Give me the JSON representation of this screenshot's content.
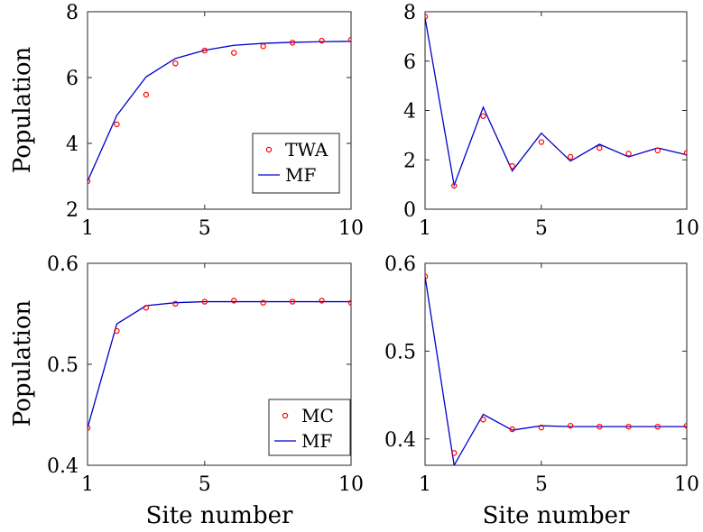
{
  "chart_data": [
    {
      "type": "line",
      "ylabel": "Population",
      "xlabel": "",
      "xlim": [
        1,
        10
      ],
      "ylim": [
        2,
        8
      ],
      "xticks": [
        1,
        5,
        10
      ],
      "yticks": [
        2,
        4,
        6,
        8
      ],
      "x": [
        1,
        2,
        3,
        4,
        5,
        6,
        7,
        8,
        9,
        10
      ],
      "series": [
        {
          "name": "TWA",
          "style": "markers",
          "color": "#ff0000",
          "values": [
            2.85,
            4.58,
            5.48,
            6.43,
            6.82,
            6.75,
            6.95,
            7.06,
            7.12,
            7.15
          ]
        },
        {
          "name": "MF",
          "style": "line",
          "color": "#0000cc",
          "values": [
            2.85,
            4.85,
            6.02,
            6.58,
            6.83,
            6.98,
            7.04,
            7.07,
            7.09,
            7.1
          ]
        }
      ],
      "legend": {
        "position": "bottom-right",
        "entries": [
          "TWA",
          "MF"
        ]
      }
    },
    {
      "type": "line",
      "ylabel": "",
      "xlabel": "",
      "xlim": [
        1,
        10
      ],
      "ylim": [
        0,
        8
      ],
      "xticks": [
        1,
        5,
        10
      ],
      "yticks": [
        0,
        2,
        4,
        6,
        8
      ],
      "x": [
        1,
        2,
        3,
        4,
        5,
        6,
        7,
        8,
        9,
        10
      ],
      "series": [
        {
          "name": "",
          "style": "markers",
          "color": "#ff0000",
          "values": [
            7.8,
            0.95,
            3.77,
            1.75,
            2.72,
            2.12,
            2.48,
            2.25,
            2.38,
            2.28
          ]
        },
        {
          "name": "",
          "style": "line",
          "color": "#0000cc",
          "values": [
            7.75,
            0.97,
            4.13,
            1.55,
            3.08,
            1.95,
            2.63,
            2.12,
            2.48,
            2.2
          ]
        }
      ]
    },
    {
      "type": "line",
      "ylabel": "Population",
      "xlabel": "Site number",
      "xlim": [
        1,
        10
      ],
      "ylim": [
        0.4,
        0.6
      ],
      "xticks": [
        1,
        5,
        10
      ],
      "yticks": [
        0.4,
        0.5,
        0.6
      ],
      "x": [
        1,
        2,
        3,
        4,
        5,
        6,
        7,
        8,
        9,
        10
      ],
      "series": [
        {
          "name": "MC",
          "style": "markers",
          "color": "#ff0000",
          "values": [
            0.437,
            0.533,
            0.556,
            0.56,
            0.562,
            0.563,
            0.561,
            0.562,
            0.563,
            0.561
          ]
        },
        {
          "name": "MF",
          "style": "line",
          "color": "#0000cc",
          "values": [
            0.437,
            0.54,
            0.558,
            0.561,
            0.562,
            0.562,
            0.562,
            0.562,
            0.562,
            0.562
          ]
        }
      ],
      "legend": {
        "position": "bottom-right",
        "entries": [
          "MC",
          "MF"
        ]
      }
    },
    {
      "type": "line",
      "ylabel": "",
      "xlabel": "Site number",
      "xlim": [
        1,
        10
      ],
      "ylim": [
        0.37,
        0.6
      ],
      "xticks": [
        1,
        5,
        10
      ],
      "yticks": [
        0.4,
        0.5,
        0.6
      ],
      "x": [
        1,
        2,
        3,
        4,
        5,
        6,
        7,
        8,
        9,
        10
      ],
      "series": [
        {
          "name": "",
          "style": "markers",
          "color": "#ff0000",
          "values": [
            0.585,
            0.384,
            0.422,
            0.411,
            0.413,
            0.415,
            0.414,
            0.414,
            0.414,
            0.415
          ]
        },
        {
          "name": "",
          "style": "line",
          "color": "#0000cc",
          "values": [
            0.585,
            0.37,
            0.428,
            0.41,
            0.415,
            0.414,
            0.414,
            0.414,
            0.414,
            0.414
          ]
        }
      ]
    }
  ]
}
